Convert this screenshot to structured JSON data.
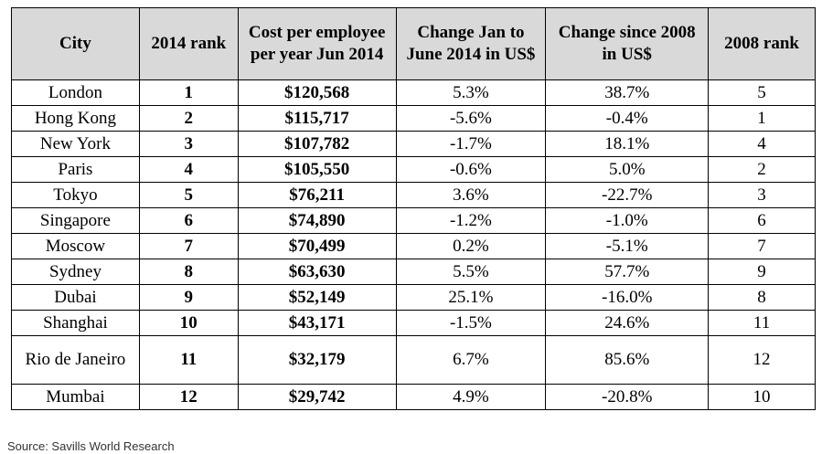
{
  "table": {
    "headers": {
      "city": "City",
      "rank_2014": "2014 rank",
      "cost": "Cost per employee per year Jun 2014",
      "change_jan_jun": "Change Jan to June 2014 in US$",
      "change_2008": "Change since 2008 in US$",
      "rank_2008": "2008 rank"
    },
    "rows": [
      {
        "city": "London",
        "rank_2014": "1",
        "cost": "$120,568",
        "change_jan_jun": "5.3%",
        "change_2008": "38.7%",
        "rank_2008": "5"
      },
      {
        "city": "Hong Kong",
        "rank_2014": "2",
        "cost": "$115,717",
        "change_jan_jun": "-5.6%",
        "change_2008": "-0.4%",
        "rank_2008": "1"
      },
      {
        "city": "New York",
        "rank_2014": "3",
        "cost": "$107,782",
        "change_jan_jun": "-1.7%",
        "change_2008": "18.1%",
        "rank_2008": "4"
      },
      {
        "city": "Paris",
        "rank_2014": "4",
        "cost": "$105,550",
        "change_jan_jun": "-0.6%",
        "change_2008": "5.0%",
        "rank_2008": "2"
      },
      {
        "city": "Tokyo",
        "rank_2014": "5",
        "cost": "$76,211",
        "change_jan_jun": "3.6%",
        "change_2008": "-22.7%",
        "rank_2008": "3"
      },
      {
        "city": "Singapore",
        "rank_2014": "6",
        "cost": "$74,890",
        "change_jan_jun": "-1.2%",
        "change_2008": "-1.0%",
        "rank_2008": "6"
      },
      {
        "city": "Moscow",
        "rank_2014": "7",
        "cost": "$70,499",
        "change_jan_jun": "0.2%",
        "change_2008": "-5.1%",
        "rank_2008": "7"
      },
      {
        "city": "Sydney",
        "rank_2014": "8",
        "cost": "$63,630",
        "change_jan_jun": "5.5%",
        "change_2008": "57.7%",
        "rank_2008": "9"
      },
      {
        "city": "Dubai",
        "rank_2014": "9",
        "cost": "$52,149",
        "change_jan_jun": "25.1%",
        "change_2008": "-16.0%",
        "rank_2008": "8"
      },
      {
        "city": "Shanghai",
        "rank_2014": "10",
        "cost": "$43,171",
        "change_jan_jun": "-1.5%",
        "change_2008": "24.6%",
        "rank_2008": "11"
      },
      {
        "city": "Rio de Janeiro",
        "rank_2014": "11",
        "cost": "$32,179",
        "change_jan_jun": "6.7%",
        "change_2008": "85.6%",
        "rank_2008": "12"
      },
      {
        "city": "Mumbai",
        "rank_2014": "12",
        "cost": "$29,742",
        "change_jan_jun": "4.9%",
        "change_2008": "-20.8%",
        "rank_2008": "10"
      }
    ]
  },
  "source": "Source: Savills World Research"
}
